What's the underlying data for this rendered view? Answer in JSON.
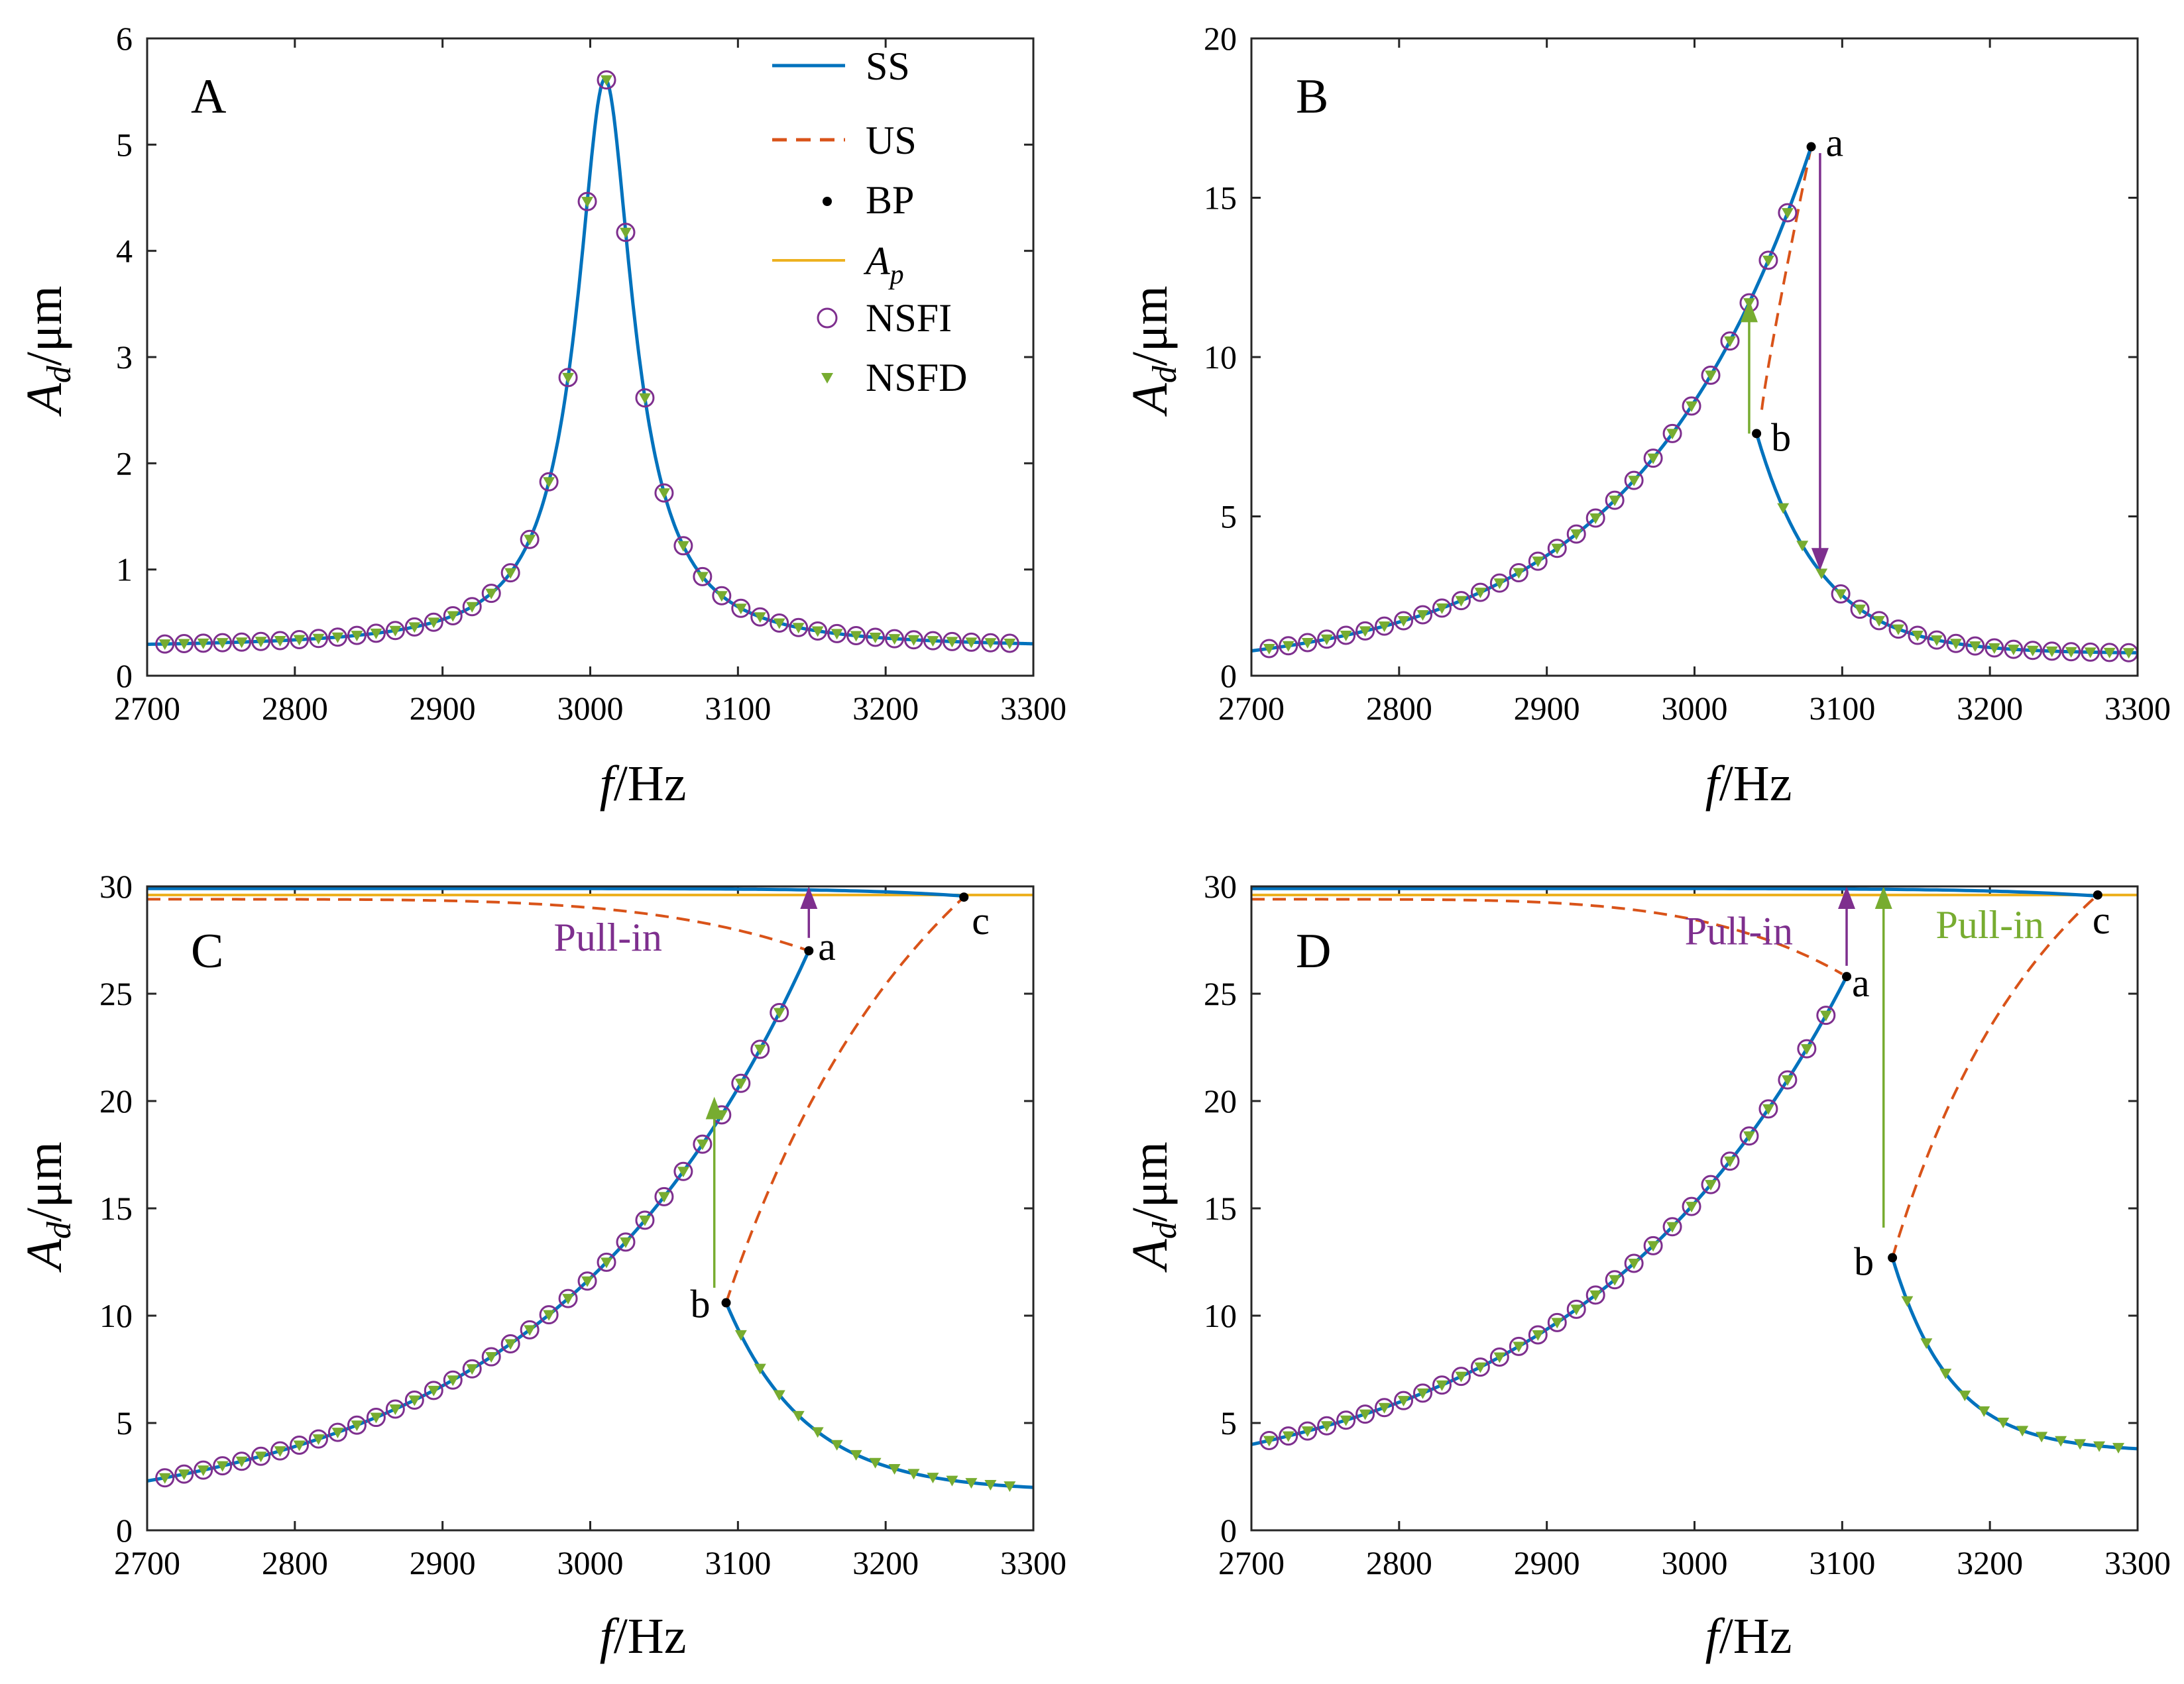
{
  "colors": {
    "ss": "#0072BD",
    "us": "#D95319",
    "bp": "#000000",
    "ap": "#EDB120",
    "nsfi": "#7E2F8E",
    "nsfd": "#77AC30"
  },
  "axis_labels": {
    "x_main": "f",
    "x_unit": "/Hz",
    "y_main": "A",
    "y_sub": "d",
    "y_unit": "/μm"
  },
  "legend": {
    "ss": "SS",
    "us": "US",
    "bp": "BP",
    "ap_main": "A",
    "ap_sub": "p",
    "nsfi": "NSFI",
    "nsfd": "NSFD"
  },
  "chart_data": [
    {
      "panel": "A",
      "type": "line",
      "xlim": [
        2700,
        3300
      ],
      "ylim": [
        0,
        6
      ],
      "xticks": [
        2700,
        2800,
        2900,
        3000,
        3100,
        3200,
        3300
      ],
      "yticks": [
        0,
        1,
        2,
        3,
        4,
        5,
        6
      ],
      "peak": {
        "f0": 3010,
        "amplitude": 5.62,
        "base": 0.26
      },
      "series": [
        {
          "name": "SS",
          "style": "solid"
        },
        {
          "name": "NSFI",
          "style": "circle-markers"
        },
        {
          "name": "NSFD",
          "style": "triangle-markers"
        }
      ],
      "arrows": [],
      "points": [],
      "labels": []
    },
    {
      "panel": "B",
      "type": "line",
      "xlim": [
        2700,
        3300
      ],
      "ylim": [
        0,
        20
      ],
      "xticks": [
        2700,
        2800,
        2900,
        3000,
        3100,
        3200,
        3300
      ],
      "yticks": [
        0,
        5,
        10,
        15,
        20
      ],
      "points": [
        {
          "id": "a",
          "f": 3079,
          "A": 16.6
        },
        {
          "id": "b",
          "f": 3042,
          "A": 7.6
        }
      ],
      "labels": [],
      "upper_branch": {
        "start": [
          2700,
          0.78
        ],
        "mid": [
          2985,
          7.6
        ],
        "end": [
          3079,
          16.6
        ]
      },
      "lower_branch": {
        "start": [
          3042,
          7.6
        ],
        "mid": [
          3110,
          2.15
        ],
        "end": [
          3300,
          0.72
        ]
      },
      "unstable_branch": {
        "from": [
          3079,
          16.6
        ],
        "to": [
          3042,
          7.6
        ]
      },
      "arrows": [
        {
          "color": "nsfd",
          "f": 3037,
          "from": 7.6,
          "to": 11.8
        },
        {
          "color": "nsfi",
          "f": 3085,
          "from": 16.4,
          "to": 3.3
        }
      ]
    },
    {
      "panel": "C",
      "type": "line",
      "xlim": [
        2700,
        3300
      ],
      "ylim": [
        0,
        30
      ],
      "xticks": [
        2700,
        2800,
        2900,
        3000,
        3100,
        3200,
        3300
      ],
      "yticks": [
        0,
        5,
        10,
        15,
        20,
        25,
        30
      ],
      "ap_level": 29.6,
      "top_branch_level": 29.9,
      "points": [
        {
          "id": "a",
          "f": 3148,
          "A": 27.0
        },
        {
          "id": "b",
          "f": 3092,
          "A": 10.6
        },
        {
          "id": "c",
          "f": 3253,
          "A": 29.5
        }
      ],
      "upper_branch": {
        "start": [
          2700,
          2.3
        ],
        "mid": [
          2980,
          10.5
        ],
        "end": [
          3148,
          27.0
        ]
      },
      "lower_branch": {
        "start": [
          3092,
          10.6
        ],
        "mid": [
          3150,
          4.8
        ],
        "end": [
          3300,
          2.0
        ]
      },
      "arrows": [
        {
          "color": "nsfd",
          "f": 3084,
          "from": 11.3,
          "to": 20.2
        },
        {
          "color": "nsfi",
          "f": 3148,
          "from": 27.6,
          "to": 30.0
        }
      ],
      "labels": [
        {
          "text": "Pull-in",
          "color": "nsfi",
          "f": 3012,
          "A": 27.0
        }
      ]
    },
    {
      "panel": "D",
      "type": "line",
      "xlim": [
        2700,
        3300
      ],
      "ylim": [
        0,
        30
      ],
      "xticks": [
        2700,
        2800,
        2900,
        3000,
        3100,
        3200,
        3300
      ],
      "yticks": [
        0,
        5,
        10,
        15,
        20,
        25,
        30
      ],
      "ap_level": 29.6,
      "top_branch_level": 29.9,
      "points": [
        {
          "id": "a",
          "f": 3103,
          "A": 25.8
        },
        {
          "id": "b",
          "f": 3134,
          "A": 12.7
        },
        {
          "id": "c",
          "f": 3273,
          "A": 29.6
        }
      ],
      "upper_branch": {
        "start": [
          2700,
          4.0
        ],
        "mid": [
          2960,
          12.5
        ],
        "end": [
          3103,
          25.8
        ]
      },
      "lower_branch": {
        "start": [
          3134,
          12.7
        ],
        "mid": [
          3180,
          6.5
        ],
        "end": [
          3300,
          3.8
        ]
      },
      "arrows": [
        {
          "color": "nsfi",
          "f": 3103,
          "from": 26.3,
          "to": 30.0
        },
        {
          "color": "nsfd",
          "f": 3128,
          "from": 14.1,
          "to": 30.0
        }
      ],
      "labels": [
        {
          "text": "Pull-in",
          "color": "nsfi",
          "f": 3030,
          "A": 27.3
        },
        {
          "text": "Pull-in",
          "color": "nsfd",
          "f": 3200,
          "A": 27.6
        }
      ]
    }
  ]
}
